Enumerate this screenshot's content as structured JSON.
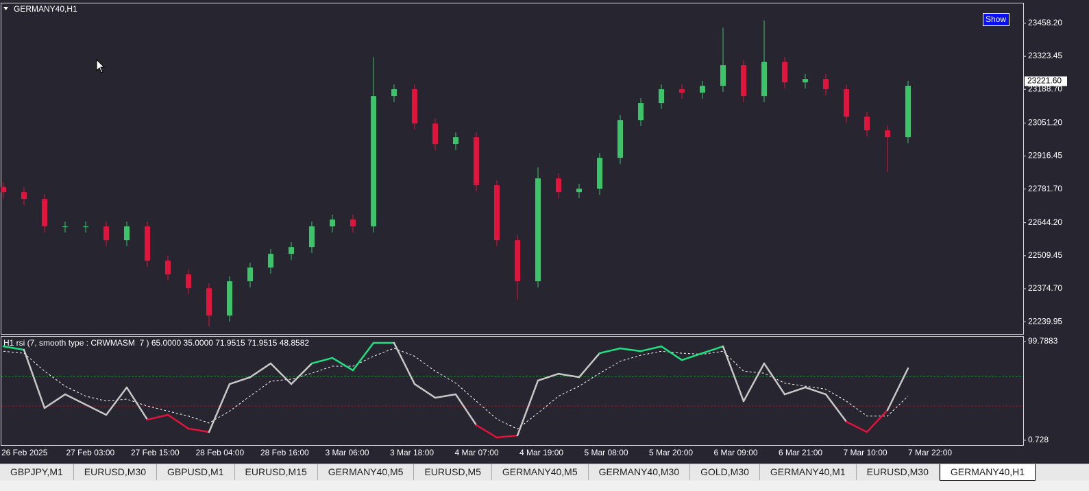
{
  "chart_data": [
    {
      "type": "candlestick",
      "title": "GERMANY40,H1",
      "open": [
        22790,
        22769,
        22741,
        22629,
        22629,
        22629,
        22573,
        22629,
        22489,
        22433,
        22377,
        22265,
        22405,
        22461,
        22517,
        22545,
        22629,
        22657,
        22629,
        23161,
        23189,
        23049,
        22965,
        22993,
        22797,
        22573,
        22405,
        22825,
        22769,
        22783,
        22909,
        23063,
        23133,
        23189,
        23175,
        23203,
        23287,
        23161,
        23301,
        23217,
        23231,
        23189,
        23077,
        23021,
        22993
      ],
      "high": [
        22810,
        22789,
        22761,
        22649,
        22649,
        22649,
        22649,
        22649,
        22509,
        22453,
        22397,
        22425,
        22481,
        22537,
        22565,
        22649,
        22677,
        22677,
        23320,
        23209,
        23209,
        23069,
        23013,
        23013,
        22817,
        22593,
        22870,
        22845,
        22803,
        22929,
        23083,
        23153,
        23209,
        23209,
        23223,
        23440,
        23307,
        23470,
        23321,
        23251,
        23251,
        23209,
        23097,
        23041,
        23223
      ],
      "low": [
        22744,
        22716,
        22604,
        22604,
        22604,
        22548,
        22548,
        22464,
        22408,
        22352,
        22220,
        22240,
        22380,
        22436,
        22492,
        22520,
        22604,
        22604,
        22604,
        23136,
        23024,
        22940,
        22940,
        22772,
        22548,
        22330,
        22380,
        22744,
        22744,
        22758,
        22884,
        23038,
        23108,
        23150,
        23150,
        23178,
        23136,
        23136,
        23192,
        23192,
        23164,
        23052,
        22996,
        22850,
        22968
      ],
      "close": [
        22769,
        22741,
        22629,
        22629,
        22629,
        22573,
        22629,
        22489,
        22433,
        22377,
        22265,
        22405,
        22461,
        22517,
        22545,
        22629,
        22657,
        22629,
        23161,
        23189,
        23049,
        22965,
        22993,
        22797,
        22573,
        22405,
        22825,
        22769,
        22783,
        22909,
        23063,
        23133,
        23189,
        23175,
        23203,
        23287,
        23161,
        23301,
        23217,
        23231,
        23189,
        23077,
        23021,
        22993,
        23203
      ],
      "up_color": "#3cc46a",
      "down_color": "#e0143c",
      "ylim": [
        22190,
        23542
      ],
      "yticks": [
        {
          "value": 23458.2,
          "label": "23458.20"
        },
        {
          "value": 23323.45,
          "label": "23323.45"
        },
        {
          "value": 23188.7,
          "label": "23188.70"
        },
        {
          "value": 23051.2,
          "label": "23051.20"
        },
        {
          "value": 22916.45,
          "label": "22916.45"
        },
        {
          "value": 22781.7,
          "label": "22781.70"
        },
        {
          "value": 22644.2,
          "label": "22644.20"
        },
        {
          "value": 22509.45,
          "label": "22509.45"
        },
        {
          "value": 22374.7,
          "label": "22374.70"
        },
        {
          "value": 22239.95,
          "label": "22239.95"
        }
      ],
      "current_price": {
        "value": 23221.6,
        "label": "23221.60"
      },
      "x_labels": [
        "26 Feb 2025",
        "27 Feb 03:00",
        "27 Feb 15:00",
        "28 Feb 04:00",
        "28 Feb 16:00",
        "3 Mar 06:00",
        "3 Mar 18:00",
        "4 Mar 07:00",
        "4 Mar 19:00",
        "5 Mar 08:00",
        "5 Mar 20:00",
        "6 Mar 09:00",
        "6 Mar 21:00",
        "7 Mar 10:00",
        "7 Mar 22:00"
      ]
    },
    {
      "type": "line",
      "title": "H1 rsi (7, smooth type : CRWMASM  7 ) 65.0000 35.0000 71.9515 71.9515 48.8582",
      "series": [
        {
          "name": "rsi",
          "color": "#c8c8c8",
          "values": [
            94.9,
            91.5,
            33.1,
            46.8,
            36.5,
            26.2,
            53.7,
            21.4,
            26.2,
            12.4,
            9.0,
            57.1,
            64.0,
            77.8,
            57.1,
            77.8,
            83.3,
            70.9,
            98.4,
            98.4,
            57.1,
            43.4,
            46.8,
            15.9,
            3.5,
            5.5,
            60.6,
            67.4,
            64.0,
            88.1,
            92.9,
            90.1,
            94.9,
            81.2,
            88.1,
            94.9,
            39.9,
            77.8,
            46.8,
            53.7,
            46.8,
            19.3,
            9.0,
            31.0,
            72.9
          ]
        },
        {
          "name": "signal",
          "color": "#ffffff",
          "values": [
            90,
            88,
            70,
            55,
            45,
            40,
            42,
            35,
            30,
            25,
            18,
            30,
            45,
            60,
            62,
            68,
            75,
            75,
            85,
            93,
            85,
            70,
            58,
            40,
            22,
            12,
            28,
            45,
            55,
            68,
            80,
            86,
            90,
            88,
            87,
            90,
            70,
            68,
            58,
            55,
            52,
            40,
            25,
            25,
            45
          ]
        }
      ],
      "levels": [
        65,
        35
      ],
      "level_colors": [
        "#1f8f3a",
        "#8f1f2a"
      ],
      "up_color": "#20e080",
      "down_color": "#e0143c",
      "ylim": [
        0.728,
        99.7883
      ],
      "yticks": [
        99.7883,
        0.728
      ]
    }
  ],
  "button": "Show",
  "tabs": [
    "GBPJPY,M1",
    "EURUSD,M30",
    "GBPUSD,M1",
    "EURUSD,M15",
    "GERMANY40,M5",
    "EURUSD,M5",
    "GERMANY40,M5",
    "GERMANY40,M30",
    "GOLD,M30",
    "GERMANY40,M1",
    "EURUSD,M30",
    "GERMANY40,H1"
  ],
  "active_tab": 11
}
